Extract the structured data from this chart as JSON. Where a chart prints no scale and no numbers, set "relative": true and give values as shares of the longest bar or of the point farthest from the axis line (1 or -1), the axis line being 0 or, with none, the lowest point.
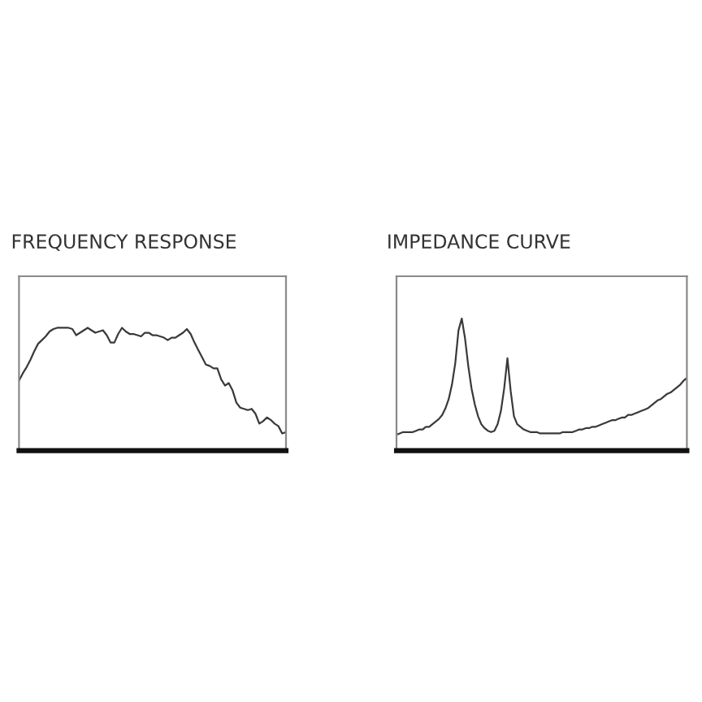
{
  "chart_data": [
    {
      "type": "line",
      "title": "FREQUENCY RESPONSE",
      "relative": true,
      "categories": [
        null,
        null,
        null,
        null,
        null,
        null,
        null,
        null,
        null,
        null,
        null,
        null,
        null,
        null,
        null,
        null,
        null,
        null,
        null,
        null,
        null,
        null,
        null,
        null,
        null,
        null,
        null,
        null,
        null,
        null,
        null,
        null,
        null,
        null,
        null,
        null,
        null,
        null,
        null,
        null,
        null,
        null,
        null,
        null,
        null,
        null,
        null,
        null,
        null,
        null,
        null,
        null,
        null,
        null,
        null,
        null,
        null,
        null,
        null,
        null,
        null,
        null,
        null,
        null,
        null,
        null,
        null,
        null,
        null,
        null,
        null
      ],
      "series": [
        {
          "color": "#3a3a3a",
          "values": [
            0.57,
            0.63,
            0.68,
            0.74,
            0.81,
            0.87,
            0.9,
            0.93,
            0.97,
            0.99,
            1.0,
            1.0,
            1.0,
            1.0,
            0.99,
            0.94,
            0.96,
            0.98,
            1.0,
            0.98,
            0.96,
            0.97,
            0.98,
            0.94,
            0.88,
            0.88,
            0.95,
            1.0,
            0.97,
            0.95,
            0.95,
            0.94,
            0.93,
            0.96,
            0.96,
            0.94,
            0.94,
            0.93,
            0.92,
            0.9,
            0.92,
            0.92,
            0.94,
            0.96,
            0.99,
            0.95,
            0.88,
            0.82,
            0.76,
            0.7,
            0.69,
            0.67,
            0.67,
            0.58,
            0.53,
            0.55,
            0.49,
            0.39,
            0.35,
            0.34,
            0.33,
            0.34,
            0.3,
            0.22,
            0.24,
            0.27,
            0.25,
            0.22,
            0.2,
            0.14,
            0.15
          ]
        }
      ]
    },
    {
      "type": "line",
      "title": "IMPEDANCE CURVE",
      "relative": true,
      "categories": [
        null,
        null,
        null,
        null,
        null,
        null,
        null,
        null,
        null,
        null,
        null,
        null,
        null,
        null,
        null,
        null,
        null,
        null,
        null,
        null,
        null,
        null,
        null,
        null,
        null,
        null,
        null,
        null,
        null,
        null,
        null,
        null,
        null,
        null,
        null,
        null,
        null,
        null,
        null,
        null,
        null,
        null,
        null,
        null,
        null,
        null,
        null,
        null,
        null,
        null,
        null,
        null,
        null,
        null,
        null,
        null,
        null,
        null,
        null,
        null,
        null,
        null,
        null,
        null,
        null,
        null,
        null,
        null,
        null,
        null,
        null,
        null,
        null,
        null,
        null,
        null,
        null,
        null,
        null,
        null,
        null,
        null,
        null,
        null,
        null,
        null,
        null,
        null,
        null,
        null
      ],
      "series": [
        {
          "color": "#3a3a3a",
          "values": [
            0.12,
            0.13,
            0.14,
            0.14,
            0.14,
            0.14,
            0.15,
            0.16,
            0.16,
            0.18,
            0.18,
            0.2,
            0.22,
            0.24,
            0.27,
            0.32,
            0.39,
            0.5,
            0.66,
            0.91,
            1.0,
            0.85,
            0.64,
            0.47,
            0.35,
            0.26,
            0.2,
            0.17,
            0.15,
            0.14,
            0.15,
            0.2,
            0.3,
            0.47,
            0.7,
            0.45,
            0.26,
            0.2,
            0.18,
            0.16,
            0.15,
            0.14,
            0.14,
            0.14,
            0.13,
            0.13,
            0.13,
            0.13,
            0.13,
            0.13,
            0.13,
            0.14,
            0.14,
            0.14,
            0.14,
            0.15,
            0.16,
            0.16,
            0.17,
            0.17,
            0.18,
            0.18,
            0.19,
            0.2,
            0.21,
            0.22,
            0.23,
            0.23,
            0.24,
            0.25,
            0.25,
            0.27,
            0.27,
            0.28,
            0.29,
            0.3,
            0.31,
            0.32,
            0.34,
            0.36,
            0.38,
            0.39,
            0.41,
            0.43,
            0.44,
            0.46,
            0.48,
            0.5,
            0.53,
            0.55
          ]
        }
      ]
    }
  ]
}
